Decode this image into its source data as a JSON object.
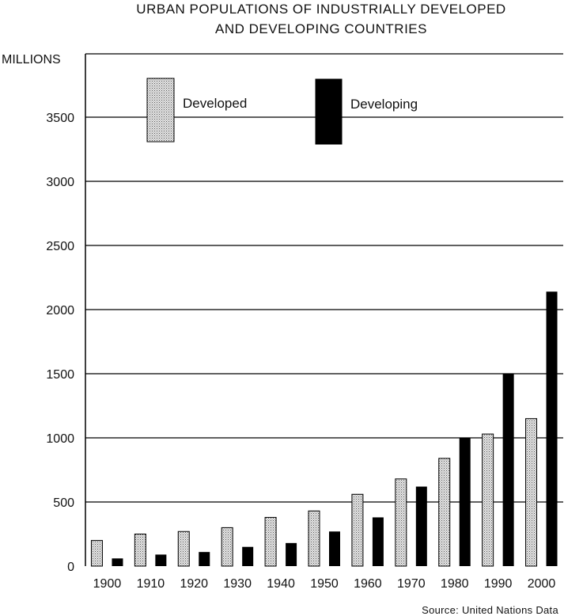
{
  "chart_data": {
    "type": "bar",
    "title": "URBAN POPULATIONS OF INDUSTRIALLY DEVELOPED",
    "subtitle": "AND DEVELOPING COUNTRIES",
    "ylabel": "MILLIONS",
    "xlabel": "",
    "ylim": [
      0,
      3900
    ],
    "yticks": [
      0,
      500,
      1000,
      1500,
      2000,
      2500,
      3000,
      3500
    ],
    "grid": true,
    "legend_position": "top",
    "categories": [
      "1900",
      "1910",
      "1920",
      "1930",
      "1940",
      "1950",
      "1960",
      "1970",
      "1980",
      "1990",
      "2000"
    ],
    "series": [
      {
        "name": "Developed",
        "color": "#d9d9d9",
        "pattern": "dotted",
        "values": [
          200,
          250,
          270,
          300,
          380,
          430,
          560,
          680,
          840,
          1030,
          1150
        ]
      },
      {
        "name": "Developing",
        "color": "#000000",
        "pattern": "solid",
        "values": [
          60,
          90,
          110,
          150,
          180,
          270,
          380,
          620,
          1000,
          1500,
          2140
        ]
      }
    ],
    "source": "Source: United Nations Data"
  }
}
